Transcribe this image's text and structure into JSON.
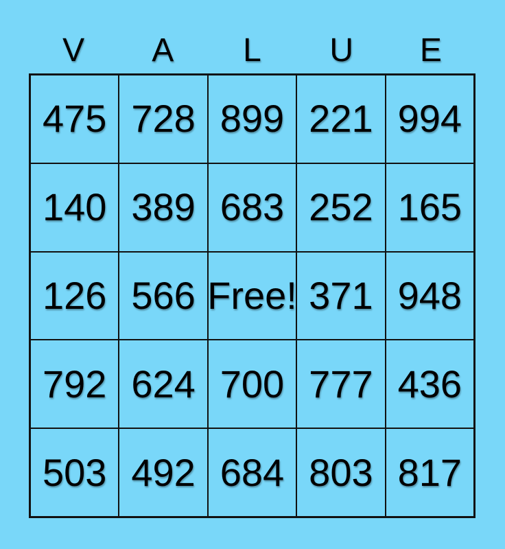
{
  "title": {
    "letters": [
      "V",
      "A",
      "L",
      "U",
      "E"
    ]
  },
  "colors": {
    "background": "#79D7F9",
    "grid_line": "#111111",
    "text": "#000000"
  },
  "grid": {
    "free_cell_label": "Free!",
    "rows": [
      {
        "cells": [
          "475",
          "728",
          "899",
          "221",
          "994"
        ]
      },
      {
        "cells": [
          "140",
          "389",
          "683",
          "252",
          "165"
        ]
      },
      {
        "cells": [
          "126",
          "566",
          "Free!",
          "371",
          "948"
        ]
      },
      {
        "cells": [
          "792",
          "624",
          "700",
          "777",
          "436"
        ]
      },
      {
        "cells": [
          "503",
          "492",
          "684",
          "803",
          "817"
        ]
      }
    ]
  }
}
